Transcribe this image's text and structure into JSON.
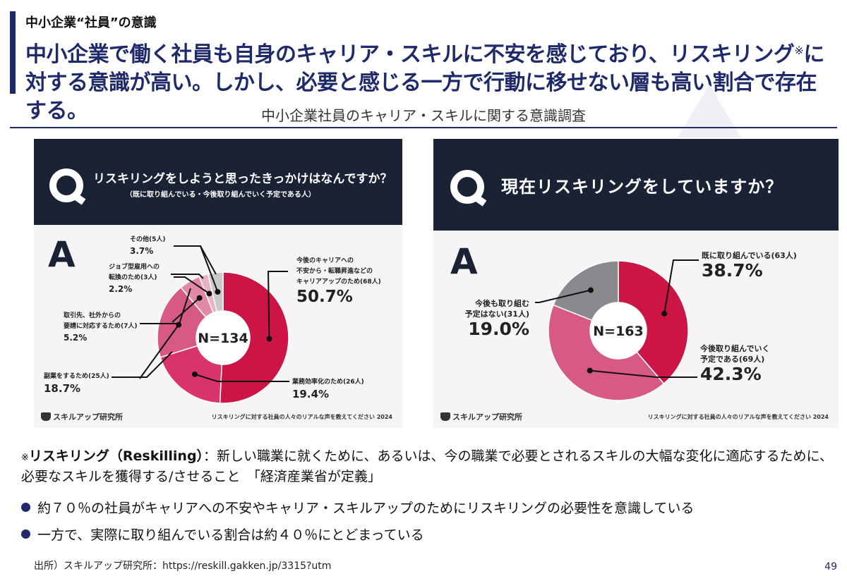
{
  "header": {
    "kicker": "中小企業“社員”の意識",
    "headline_part1": "中小企業で働く社員も自身のキャリア・スキルに不安を感じており、リスキリング",
    "headline_mark": "※",
    "headline_part2": "に対する意識が高い。しかし、必要と感じる一方で行動に移せない層も高い割合で存在する。"
  },
  "section_title": "中小企業社員のキャリア・スキルに関する意識調査",
  "left_panel": {
    "question": "リスキリングをしようと思ったきっかけはなんですか？",
    "question_sub": "（既に取り組んでいる・今後取り組んでいく予定である人）",
    "answer_mark": "A",
    "brand": "スキルアップ研究所",
    "source": "リスキリングに対する社員の人々のリアルな声を教えてください 2024"
  },
  "right_panel": {
    "question": "現在リスキリングをしていますか？",
    "answer_mark": "A",
    "brand": "スキルアップ研究所",
    "source": "リスキリングに対する社員の人々のリアルな声を教えてください 2024"
  },
  "chart_data": [
    {
      "type": "pie",
      "donut": true,
      "center_label": "N=134",
      "slices": [
        {
          "label_lines": [
            "今後のキャリアへの",
            "不安から・転職昇進などの",
            "キャリアアップのため(68人)"
          ],
          "count": 68,
          "percent": 50.7,
          "value_label": "50.7%",
          "color": "#cc1545"
        },
        {
          "label_lines": [
            "業務効率化のため(26人)"
          ],
          "count": 26,
          "percent": 19.4,
          "value_label": "19.4%",
          "color": "#d9336b"
        },
        {
          "label_lines": [
            "副業をするため(25人)"
          ],
          "count": 25,
          "percent": 18.7,
          "value_label": "18.7%",
          "color": "#d65a85"
        },
        {
          "label_lines": [
            "取引先、社外からの",
            "要請に対応するため(7人)"
          ],
          "count": 7,
          "percent": 5.2,
          "value_label": "5.2%",
          "color": "#e28aa5"
        },
        {
          "label_lines": [
            "ジョブ型雇用への",
            "転換のため(3人)"
          ],
          "count": 3,
          "percent": 2.2,
          "value_label": "2.2%",
          "color": "#ebb0c3"
        },
        {
          "label_lines": [
            "その他(5人)"
          ],
          "count": 5,
          "percent": 3.7,
          "value_label": "3.7%",
          "color": "#c9c9cc"
        }
      ]
    },
    {
      "type": "pie",
      "donut": true,
      "center_label": "N=163",
      "slices": [
        {
          "label_lines": [
            "既に取り組んでいる(63人)"
          ],
          "count": 63,
          "percent": 38.7,
          "value_label": "38.7%",
          "color": "#cc1545"
        },
        {
          "label_lines": [
            "今後取り組んでいく",
            "予定である(69人)"
          ],
          "count": 69,
          "percent": 42.3,
          "value_label": "42.3%",
          "color": "#d65a85"
        },
        {
          "label_lines": [
            "今後も取り組む",
            "予定はない(31人)"
          ],
          "count": 31,
          "percent": 19.0,
          "value_label": "19.0%",
          "color": "#8a8a8e"
        }
      ]
    }
  ],
  "note": {
    "mark": "※",
    "term": "リスキリング（Reskilling）",
    "definition": "：新しい職業に就くために、あるいは、今の職業で必要とされるスキルの大幅な変化に適応するために、必要なスキルを獲得する/させること　「経済産業省が定義」"
  },
  "bullets": [
    "約７０％の社員がキャリアへの不安やキャリア・スキルアップのためにリスキリングの必要性を意識している",
    "一方で、実際に取り組んでいる割合は約４０％にとどまっている"
  ],
  "citation": "出所）スキルアップ研究所：https://reskill.gakken.jp/3315?utm",
  "page_number": "49"
}
